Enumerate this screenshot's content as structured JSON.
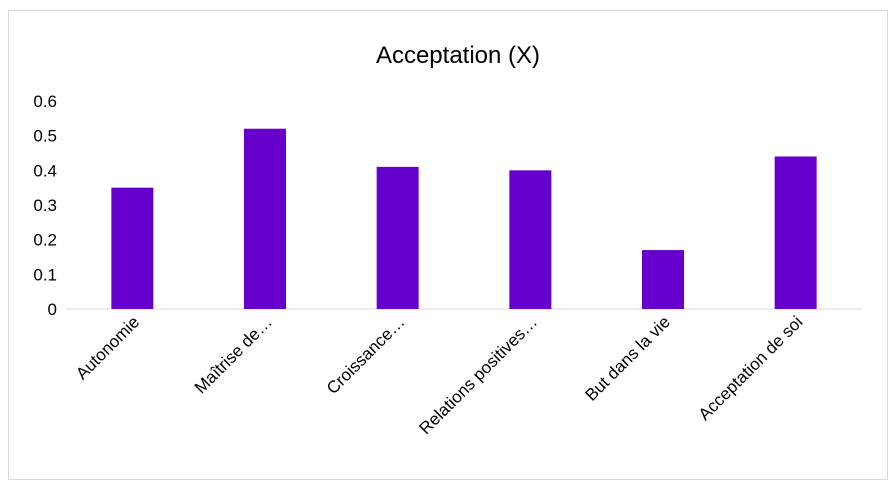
{
  "chart_data": {
    "type": "bar",
    "title": "Acceptation (X)",
    "xlabel": "",
    "ylabel": "",
    "categories": [
      "Autonomie",
      "Maîtrise de…",
      "Croissance…",
      "Relations positives…",
      "But dans la vie",
      "Acceptation de soi"
    ],
    "values": [
      0.35,
      0.52,
      0.41,
      0.4,
      0.17,
      0.44
    ],
    "yticks": [
      "0",
      "0.1",
      "0.2",
      "0.3",
      "0.4",
      "0.5",
      "0.6"
    ],
    "ylim": [
      0,
      0.6
    ],
    "grid": false,
    "legend": "none",
    "bar_color": "#6600CC"
  }
}
